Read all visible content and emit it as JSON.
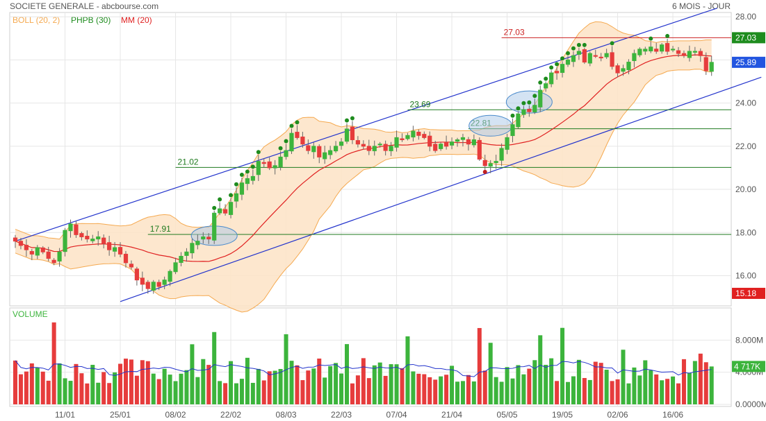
{
  "header": {
    "title": "SOCIETE GENERALE - abcbourse.com",
    "period": "6 MOIS - JOUR",
    "legend": [
      {
        "label": "BOLL (20, 2)",
        "color": "#f5a94f"
      },
      {
        "label": "PHPB (30)",
        "color": "#1e8c1e"
      },
      {
        "label": "MM (20)",
        "color": "#e02020"
      }
    ]
  },
  "colors": {
    "up": "#3cb43c",
    "down": "#e63c3c",
    "ma": "#e02020",
    "boll": "#f5a94f",
    "boll_fill": "#fde3c6",
    "channel": "#2233cc",
    "level": "#1e7a1e",
    "resistance": "#cc2222",
    "volume_avg": "#2233cc",
    "grid": "#e6e6e6"
  },
  "chart_data": [
    {
      "type": "candlestick",
      "title": "SOCIETE GENERALE",
      "period": "6 MOIS - JOUR",
      "ylim": [
        14.6,
        28.2
      ],
      "yticks": [
        "28.00",
        "26.00",
        "24.00",
        "22.00",
        "20.00",
        "18.00",
        "16.00"
      ],
      "xticks": [
        "11/01",
        "25/01",
        "08/02",
        "22/02",
        "08/03",
        "22/03",
        "07/04",
        "21/04",
        "05/05",
        "19/05",
        "02/06",
        "16/06"
      ],
      "xtick_index": [
        9,
        19,
        29,
        39,
        49,
        59,
        69,
        79,
        89,
        99,
        109,
        119
      ],
      "close": [
        17.6,
        17.4,
        17.2,
        17.0,
        17.3,
        17.1,
        16.8,
        16.6,
        17.1,
        18.1,
        18.4,
        17.9,
        17.8,
        17.7,
        17.7,
        17.8,
        17.5,
        17.2,
        17.3,
        17.0,
        16.6,
        16.4,
        15.8,
        15.6,
        15.4,
        15.7,
        15.5,
        15.8,
        16.2,
        16.6,
        16.9,
        17.1,
        17.5,
        17.6,
        17.8,
        17.7,
        18.9,
        19.1,
        18.9,
        19.4,
        19.8,
        20.3,
        20.5,
        20.6,
        21.3,
        21.2,
        21.0,
        21.1,
        21.5,
        21.8,
        22.6,
        22.4,
        22.1,
        21.8,
        22.0,
        21.5,
        21.7,
        21.8,
        22.0,
        22.2,
        22.8,
        22.3,
        22.1,
        22.0,
        21.8,
        22.0,
        22.1,
        21.8,
        22.0,
        22.4,
        22.3,
        22.5,
        22.7,
        22.5,
        22.4,
        22.0,
        21.8,
        22.1,
        22.0,
        22.2,
        22.3,
        22.4,
        22.1,
        22.3,
        21.4,
        21.1,
        21.2,
        21.3,
        21.9,
        22.4,
        23.0,
        23.5,
        23.7,
        23.6,
        23.9,
        24.6,
        24.9,
        25.4,
        25.4,
        25.8,
        26.0,
        26.2,
        26.4,
        25.9,
        26.3,
        26.2,
        26.1,
        26.3,
        25.7,
        25.4,
        25.6,
        25.9,
        26.3,
        26.5,
        26.5,
        26.6,
        26.4,
        26.7,
        26.4,
        26.5,
        26.3,
        26.2,
        26.4,
        26.4,
        26.2,
        25.5,
        25.89
      ],
      "signal_levels": [
        "27.03",
        "23.69",
        "22.81",
        "21.02",
        "17.91"
      ],
      "channel_lines": [
        {
          "from": {
            "x": 0,
            "y": 17.6
          },
          "to": {
            "x": 127,
            "y": 28.4
          }
        },
        {
          "from": {
            "x": 19,
            "y": 14.8
          },
          "to": {
            "x": 135,
            "y": 25.2
          }
        }
      ],
      "price_tags": [
        {
          "value": "27.03",
          "color": "#1e8c1e"
        },
        {
          "value": "25.89",
          "color": "#2255e0"
        },
        {
          "value": "15.18",
          "color": "#e02020"
        }
      ]
    },
    {
      "type": "bar",
      "title": "VOLUME",
      "yticks": [
        "8.000M",
        "4.000M",
        "0.0000M"
      ],
      "ylim": [
        0,
        12
      ],
      "last_value": "4 717K",
      "unit": "M"
    }
  ]
}
